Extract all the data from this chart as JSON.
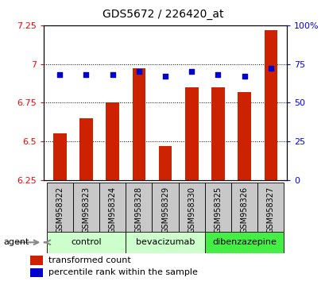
{
  "title": "GDS5672 / 226420_at",
  "samples": [
    "GSM958322",
    "GSM958323",
    "GSM958324",
    "GSM958328",
    "GSM958329",
    "GSM958330",
    "GSM958325",
    "GSM958326",
    "GSM958327"
  ],
  "bar_values": [
    6.55,
    6.65,
    6.75,
    6.97,
    6.47,
    6.85,
    6.85,
    6.82,
    7.22
  ],
  "percentile_values": [
    68,
    68,
    68,
    70,
    67,
    70,
    68,
    67,
    72
  ],
  "bar_color": "#cc2200",
  "dot_color": "#0000cc",
  "ylim_left": [
    6.25,
    7.25
  ],
  "ylim_right": [
    0,
    100
  ],
  "yticks_left": [
    6.25,
    6.5,
    6.75,
    7.0,
    7.25
  ],
  "ytick_labels_left": [
    "6.25",
    "6.5",
    "6.75",
    "7",
    "7.25"
  ],
  "yticks_right": [
    0,
    25,
    50,
    75,
    100
  ],
  "ytick_labels_right": [
    "0",
    "25",
    "50",
    "75",
    "100%"
  ],
  "groups": [
    {
      "label": "control",
      "indices": [
        0,
        1,
        2
      ],
      "color": "#ccffcc"
    },
    {
      "label": "bevacizumab",
      "indices": [
        3,
        4,
        5
      ],
      "color": "#ccffcc"
    },
    {
      "label": "dibenzazepine",
      "indices": [
        6,
        7,
        8
      ],
      "color": "#44ee44"
    }
  ],
  "agent_label": "agent",
  "legend_bar_label": "transformed count",
  "legend_dot_label": "percentile rank within the sample",
  "hline_values": [
    6.5,
    6.75,
    7.0
  ],
  "bar_width": 0.5,
  "figsize": [
    4.1,
    3.54
  ],
  "dpi": 100
}
